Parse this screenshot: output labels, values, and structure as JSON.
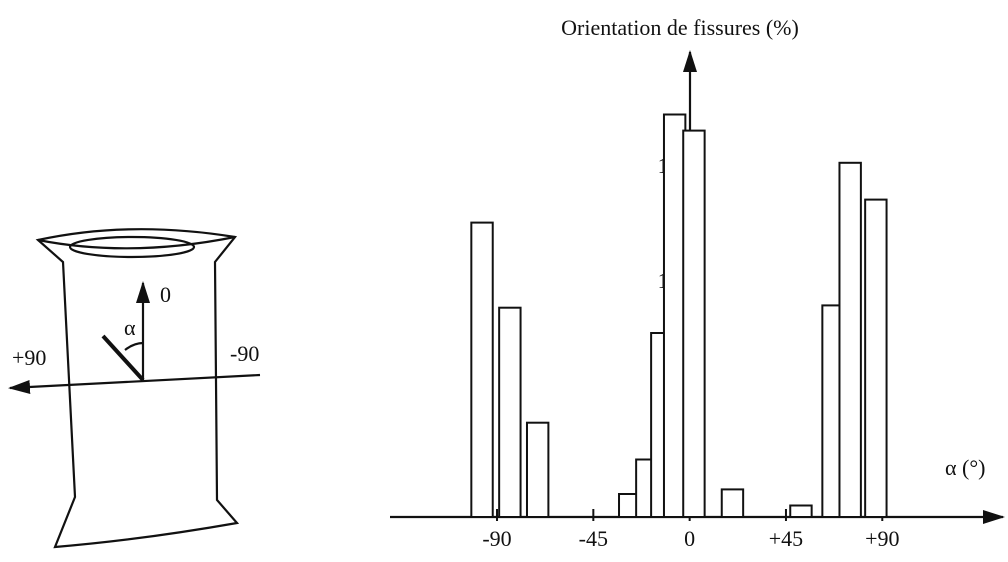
{
  "chart_data": {
    "type": "bar",
    "title": "Orientation de fissures (%)",
    "x_label": "α (°)",
    "x": [
      -97,
      -84,
      -71,
      -28,
      -20,
      -13,
      -7,
      2,
      20,
      52,
      67,
      75,
      87
    ],
    "values": [
      12.8,
      9.1,
      4.1,
      1.0,
      2.5,
      8.0,
      17.5,
      16.8,
      1.2,
      0.5,
      9.2,
      15.4,
      13.8
    ],
    "bar_width": 10,
    "color": "#ffffff",
    "xlim": [
      -140,
      145
    ],
    "ylim": [
      0,
      20
    ],
    "xticks": [
      -90,
      -45,
      0,
      {
        "value": 45,
        "label": "+45"
      },
      {
        "value": 90,
        "label": "+90"
      }
    ],
    "yticks": [
      10,
      15
    ]
  },
  "diagram": {
    "labels": [
      "0",
      "α",
      "+90",
      "-90"
    ]
  }
}
